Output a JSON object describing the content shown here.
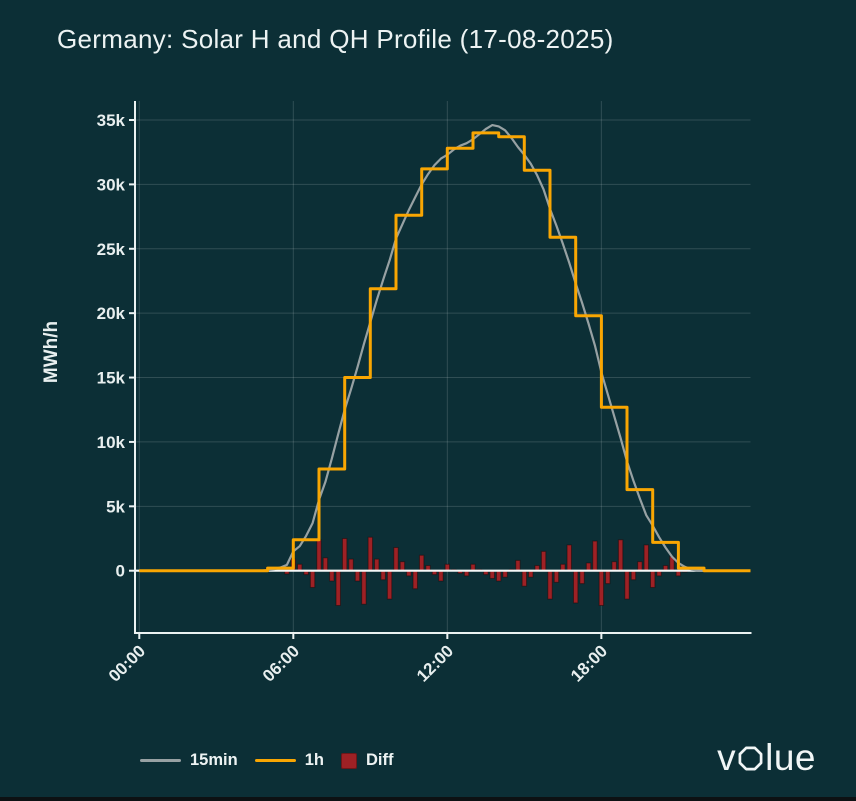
{
  "header": {
    "title": "Germany: Solar H and QH Profile (17-08-2025)"
  },
  "colors": {
    "background": "#0C2F36",
    "grid": "rgba(235,244,244,0.16)",
    "axis": "#EBF2F2",
    "zero_line": "#F4F7F7",
    "text": "#E8EFEF",
    "series_15min": "#97A1A3",
    "series_1h": "#F9A602",
    "series_diff": "#9E2125"
  },
  "chart_data": {
    "type": "line",
    "title": "Germany: Solar H and QH Profile (17-08-2025)",
    "xlabel": "",
    "ylabel": "MWh/h",
    "xlim": [
      -0.167,
      23.81
    ],
    "ylim": [
      -4837,
      36475
    ],
    "grid": true,
    "legend_position": "bottom",
    "yticks": [
      {
        "value": 0,
        "label": "0"
      },
      {
        "value": 5000,
        "label": "5k"
      },
      {
        "value": 10000,
        "label": "10k"
      },
      {
        "value": 15000,
        "label": "15k"
      },
      {
        "value": 20000,
        "label": "20k"
      },
      {
        "value": 25000,
        "label": "25k"
      },
      {
        "value": 30000,
        "label": "30k"
      },
      {
        "value": 35000,
        "label": "35k"
      }
    ],
    "xticks": [
      {
        "hour": 0,
        "label": "00:00"
      },
      {
        "hour": 6,
        "label": "06:00"
      },
      {
        "hour": 12,
        "label": "12:00"
      },
      {
        "hour": 18,
        "label": "18:00"
      }
    ],
    "series": [
      {
        "name": "15min",
        "type": "line",
        "color": "#97A1A3",
        "start_hour": 0,
        "interval_hours": 0.25,
        "values": [
          0,
          0,
          0,
          0,
          0,
          0,
          0,
          0,
          0,
          0,
          0,
          0,
          0,
          0,
          0,
          0,
          0,
          0,
          0,
          0,
          50,
          120,
          250,
          450,
          1500,
          1900,
          2700,
          3700,
          5500,
          6900,
          8700,
          10600,
          12500,
          14100,
          15800,
          17600,
          19300,
          21000,
          22600,
          24100,
          25800,
          26900,
          28000,
          29000,
          30000,
          30800,
          31500,
          32000,
          32300,
          32700,
          33000,
          33200,
          33500,
          33900,
          34300,
          34600,
          34500,
          34200,
          33600,
          32900,
          32300,
          31600,
          30700,
          29600,
          28100,
          26800,
          25400,
          23900,
          22300,
          20800,
          19200,
          17500,
          15400,
          13700,
          12000,
          10300,
          8500,
          7000,
          5600,
          4300,
          3500,
          2600,
          1800,
          1100,
          600,
          300,
          100,
          0,
          0,
          0,
          0,
          0,
          0,
          0,
          0,
          0
        ]
      },
      {
        "name": "1h",
        "type": "step",
        "color": "#F9A602",
        "start_hour": 0,
        "interval_hours": 1,
        "values": [
          0,
          0,
          0,
          0,
          0,
          200,
          2400,
          7900,
          15000,
          21900,
          27600,
          31200,
          32800,
          34000,
          33700,
          31100,
          25900,
          19800,
          12700,
          6300,
          2200,
          200,
          0,
          0
        ]
      },
      {
        "name": "Diff",
        "type": "bar",
        "color": "#9E2125",
        "start_hour": 0,
        "interval_hours": 0.25,
        "values": [
          0,
          0,
          0,
          0,
          0,
          0,
          0,
          0,
          0,
          0,
          0,
          0,
          0,
          0,
          0,
          0,
          0,
          0,
          0,
          0,
          150,
          80,
          -50,
          -250,
          900,
          500,
          -300,
          -1300,
          2400,
          1000,
          -800,
          -2700,
          2500,
          900,
          -800,
          -2600,
          2600,
          900,
          -700,
          -2200,
          1800,
          700,
          -400,
          -1400,
          1200,
          400,
          -300,
          -800,
          500,
          100,
          -200,
          -400,
          500,
          100,
          -300,
          -600,
          -800,
          -500,
          100,
          800,
          -1200,
          -500,
          400,
          1500,
          -2200,
          -900,
          500,
          2000,
          -2500,
          -1000,
          600,
          2300,
          -2700,
          -1000,
          700,
          2400,
          -2200,
          -700,
          700,
          2000,
          -1300,
          -400,
          400,
          1100,
          -400,
          -100,
          100,
          200,
          0,
          0,
          0,
          0,
          0,
          0,
          0,
          0
        ]
      }
    ]
  },
  "legend": {
    "items": [
      {
        "label": "15min",
        "marker": "line",
        "color": "#97A1A3"
      },
      {
        "label": "1h",
        "marker": "line",
        "color": "#F9A602"
      },
      {
        "label": "Diff",
        "marker": "square",
        "color": "#9E2125"
      }
    ]
  },
  "logo": {
    "text": "volue"
  }
}
